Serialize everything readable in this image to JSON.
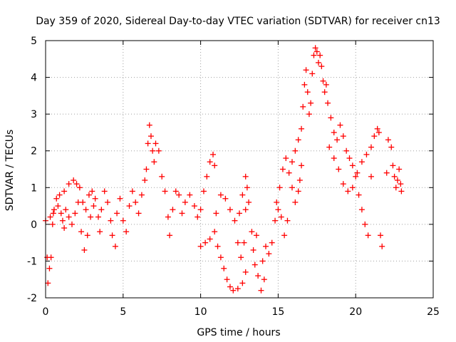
{
  "chart_data": {
    "type": "scatter",
    "title": "Day 359 of 2020, Sidereal Day-to-day VTEC variation (SDTVAR) for receiver cn13",
    "xlabel": "GPS time / hours",
    "ylabel": "SDTVAR / TECUs",
    "xlim": [
      0,
      25
    ],
    "ylim": [
      -2,
      5
    ],
    "xticks": [
      0,
      5,
      10,
      15,
      20,
      25
    ],
    "yticks": [
      -2,
      -1,
      0,
      1,
      2,
      3,
      4,
      5
    ],
    "grid": true,
    "marker": "+",
    "color": "#ff0000",
    "series": [
      {
        "name": "SDTVAR",
        "points": [
          [
            0.0,
            0.1
          ],
          [
            0.1,
            -0.9
          ],
          [
            0.15,
            -1.6
          ],
          [
            0.25,
            -1.2
          ],
          [
            0.35,
            -0.9
          ],
          [
            0.45,
            0.0
          ],
          [
            0.55,
            0.4
          ],
          [
            0.7,
            0.7
          ],
          [
            0.9,
            0.8
          ],
          [
            1.0,
            0.3
          ],
          [
            1.1,
            0.1
          ],
          [
            1.2,
            -0.1
          ],
          [
            0.3,
            0.2
          ],
          [
            0.5,
            0.3
          ],
          [
            0.8,
            0.5
          ],
          [
            1.2,
            0.9
          ],
          [
            1.5,
            1.1
          ],
          [
            1.8,
            1.2
          ],
          [
            2.0,
            1.1
          ],
          [
            2.2,
            1.0
          ],
          [
            2.4,
            0.6
          ],
          [
            2.6,
            0.4
          ],
          [
            1.3,
            0.4
          ],
          [
            1.5,
            0.2
          ],
          [
            1.7,
            0.0
          ],
          [
            1.9,
            0.3
          ],
          [
            2.1,
            0.6
          ],
          [
            2.3,
            -0.2
          ],
          [
            2.5,
            -0.7
          ],
          [
            2.7,
            -0.3
          ],
          [
            2.9,
            0.2
          ],
          [
            3.1,
            0.5
          ],
          [
            2.8,
            0.8
          ],
          [
            3.0,
            0.9
          ],
          [
            3.2,
            0.7
          ],
          [
            3.4,
            0.2
          ],
          [
            3.5,
            -0.2
          ],
          [
            3.6,
            0.4
          ],
          [
            3.8,
            0.9
          ],
          [
            4.0,
            0.6
          ],
          [
            4.2,
            0.1
          ],
          [
            4.3,
            -0.3
          ],
          [
            4.5,
            -0.6
          ],
          [
            4.6,
            0.3
          ],
          [
            4.8,
            0.7
          ],
          [
            5.0,
            0.1
          ],
          [
            5.2,
            -0.2
          ],
          [
            5.4,
            0.5
          ],
          [
            5.6,
            0.9
          ],
          [
            5.8,
            0.6
          ],
          [
            6.0,
            0.3
          ],
          [
            6.2,
            0.8
          ],
          [
            6.4,
            1.2
          ],
          [
            6.5,
            1.5
          ],
          [
            6.6,
            2.2
          ],
          [
            6.7,
            2.7
          ],
          [
            6.8,
            2.4
          ],
          [
            6.9,
            2.0
          ],
          [
            7.0,
            1.7
          ],
          [
            7.1,
            2.2
          ],
          [
            7.3,
            2.0
          ],
          [
            7.5,
            1.3
          ],
          [
            7.7,
            0.9
          ],
          [
            7.9,
            0.2
          ],
          [
            8.0,
            -0.3
          ],
          [
            8.2,
            0.4
          ],
          [
            8.4,
            0.9
          ],
          [
            8.6,
            0.8
          ],
          [
            8.8,
            0.3
          ],
          [
            9.0,
            0.6
          ],
          [
            9.3,
            0.8
          ],
          [
            9.6,
            0.5
          ],
          [
            9.8,
            0.2
          ],
          [
            10.0,
            0.4
          ],
          [
            10.2,
            0.9
          ],
          [
            10.4,
            1.3
          ],
          [
            10.6,
            1.7
          ],
          [
            10.8,
            1.9
          ],
          [
            10.9,
            1.6
          ],
          [
            10.0,
            -0.6
          ],
          [
            10.3,
            -0.5
          ],
          [
            10.6,
            -0.4
          ],
          [
            10.9,
            -0.2
          ],
          [
            11.1,
            -0.6
          ],
          [
            11.3,
            -0.9
          ],
          [
            11.5,
            -1.2
          ],
          [
            11.7,
            -1.5
          ],
          [
            11.9,
            -1.7
          ],
          [
            12.1,
            -1.8
          ],
          [
            12.4,
            -1.75
          ],
          [
            12.7,
            -1.6
          ],
          [
            12.9,
            -1.3
          ],
          [
            11.0,
            0.3
          ],
          [
            11.3,
            0.8
          ],
          [
            11.6,
            0.7
          ],
          [
            11.9,
            0.4
          ],
          [
            12.2,
            0.1
          ],
          [
            12.4,
            -0.5
          ],
          [
            12.6,
            -0.9
          ],
          [
            12.8,
            -0.5
          ],
          [
            12.9,
            0.4
          ],
          [
            13.0,
            1.0
          ],
          [
            12.5,
            0.3
          ],
          [
            12.7,
            0.8
          ],
          [
            12.9,
            1.3
          ],
          [
            13.1,
            0.6
          ],
          [
            13.3,
            -0.2
          ],
          [
            13.4,
            -0.7
          ],
          [
            13.5,
            -1.1
          ],
          [
            13.7,
            -1.4
          ],
          [
            13.9,
            -1.8
          ],
          [
            14.1,
            -1.5
          ],
          [
            13.6,
            -0.3
          ],
          [
            14.0,
            -1.0
          ],
          [
            14.2,
            -0.6
          ],
          [
            14.4,
            -0.8
          ],
          [
            14.6,
            -0.5
          ],
          [
            14.8,
            0.1
          ],
          [
            15.0,
            0.4
          ],
          [
            15.2,
            0.2
          ],
          [
            15.4,
            -0.3
          ],
          [
            15.6,
            0.1
          ],
          [
            14.9,
            0.6
          ],
          [
            15.1,
            1.0
          ],
          [
            15.3,
            1.5
          ],
          [
            15.5,
            1.8
          ],
          [
            15.7,
            1.4
          ],
          [
            15.9,
            1.0
          ],
          [
            16.1,
            0.6
          ],
          [
            16.3,
            0.9
          ],
          [
            16.4,
            1.2
          ],
          [
            16.5,
            1.6
          ],
          [
            15.9,
            1.7
          ],
          [
            16.1,
            2.0
          ],
          [
            16.3,
            2.3
          ],
          [
            16.5,
            2.6
          ],
          [
            16.6,
            3.2
          ],
          [
            16.7,
            3.8
          ],
          [
            16.8,
            4.2
          ],
          [
            16.9,
            3.6
          ],
          [
            17.0,
            3.0
          ],
          [
            17.1,
            3.3
          ],
          [
            17.2,
            4.1
          ],
          [
            17.3,
            4.6
          ],
          [
            17.4,
            4.8
          ],
          [
            17.5,
            4.7
          ],
          [
            17.6,
            4.4
          ],
          [
            17.7,
            4.6
          ],
          [
            17.8,
            4.3
          ],
          [
            17.9,
            3.9
          ],
          [
            18.0,
            3.6
          ],
          [
            18.1,
            3.8
          ],
          [
            18.2,
            3.3
          ],
          [
            18.4,
            2.9
          ],
          [
            18.6,
            2.5
          ],
          [
            18.8,
            2.3
          ],
          [
            19.0,
            2.7
          ],
          [
            19.2,
            2.4
          ],
          [
            19.4,
            2.0
          ],
          [
            19.6,
            1.8
          ],
          [
            19.8,
            1.6
          ],
          [
            20.0,
            1.3
          ],
          [
            18.3,
            2.1
          ],
          [
            18.6,
            1.8
          ],
          [
            18.9,
            1.5
          ],
          [
            19.2,
            1.1
          ],
          [
            19.5,
            0.9
          ],
          [
            19.8,
            1.0
          ],
          [
            20.1,
            1.4
          ],
          [
            20.4,
            1.7
          ],
          [
            20.7,
            1.9
          ],
          [
            21.0,
            2.1
          ],
          [
            20.2,
            0.8
          ],
          [
            20.4,
            0.4
          ],
          [
            20.6,
            0.0
          ],
          [
            20.8,
            -0.3
          ],
          [
            21.0,
            1.3
          ],
          [
            21.2,
            2.4
          ],
          [
            21.4,
            2.6
          ],
          [
            21.5,
            2.5
          ],
          [
            21.6,
            -0.3
          ],
          [
            21.7,
            -0.6
          ],
          [
            22.0,
            1.4
          ],
          [
            22.1,
            2.3
          ],
          [
            22.3,
            2.1
          ],
          [
            22.4,
            1.6
          ],
          [
            22.5,
            1.3
          ],
          [
            22.6,
            1.0
          ],
          [
            22.7,
            1.2
          ],
          [
            22.8,
            1.5
          ],
          [
            22.9,
            1.1
          ],
          [
            22.95,
            0.9
          ]
        ]
      }
    ]
  }
}
